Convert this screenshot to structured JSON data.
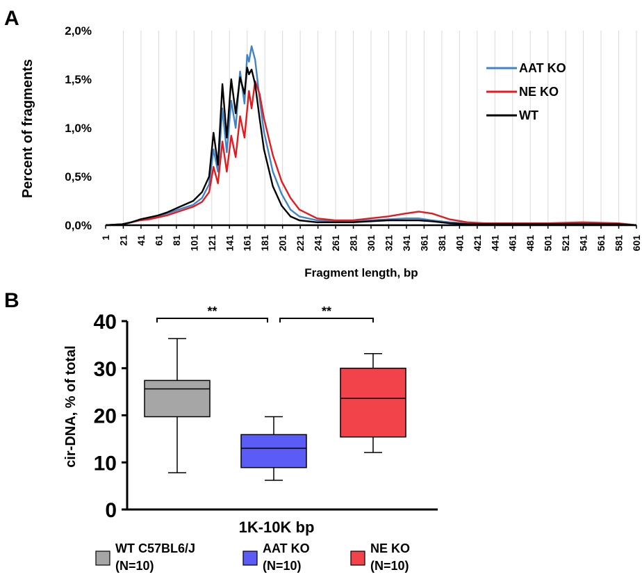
{
  "panels": {
    "a_letter": "A",
    "b_letter": "B"
  },
  "colors": {
    "aat": "#3f84c6",
    "ne": "#e41a1c",
    "wt": "#000000",
    "box_wt": "#a6a6a6",
    "box_aat": "#5a5cf5",
    "box_ne": "#f2434a"
  },
  "chart_data": [
    {
      "type": "line",
      "panel": "A",
      "xlabel": "Fragment length, bp",
      "ylabel": "Percent of fragments",
      "ylim": [
        0,
        2.0
      ],
      "xlim": [
        1,
        601
      ],
      "y_ticks": [
        0,
        0.5,
        1.0,
        1.5,
        2.0
      ],
      "y_tick_labels": [
        "0,0%",
        "0,5%",
        "1,0%",
        "1,5%",
        "2,0%"
      ],
      "x_ticks": [
        1,
        21,
        41,
        61,
        81,
        101,
        121,
        141,
        161,
        181,
        201,
        221,
        241,
        261,
        281,
        301,
        321,
        341,
        361,
        381,
        401,
        421,
        441,
        461,
        481,
        501,
        521,
        541,
        561,
        581,
        601
      ],
      "x_tick_labels": [
        "1",
        "21",
        "41",
        "61",
        "81",
        "101",
        "121",
        "141",
        "161",
        "181",
        "201",
        "221",
        "241",
        "261",
        "281",
        "301",
        "321",
        "341",
        "361",
        "381",
        "401",
        "421",
        "441",
        "461",
        "481",
        "501",
        "521",
        "541",
        "561",
        "581",
        "601"
      ],
      "grid": "vertical",
      "legend_position": "top-right",
      "series": [
        {
          "name": "AAT KO",
          "color": "#3f84c6",
          "x": [
            1,
            20,
            30,
            40,
            50,
            60,
            70,
            80,
            90,
            100,
            110,
            118,
            123,
            128,
            133,
            138,
            143,
            148,
            153,
            158,
            161,
            163,
            166,
            170,
            175,
            180,
            190,
            200,
            210,
            220,
            240,
            260,
            280,
            300,
            320,
            340,
            355,
            370,
            390,
            410,
            430,
            460,
            500,
            540,
            580,
            601
          ],
          "y": [
            0.0,
            0.01,
            0.03,
            0.05,
            0.07,
            0.09,
            0.12,
            0.15,
            0.18,
            0.21,
            0.28,
            0.42,
            0.78,
            0.55,
            1.2,
            0.75,
            1.28,
            1.0,
            1.58,
            1.25,
            1.75,
            1.68,
            1.84,
            1.7,
            1.3,
            0.96,
            0.55,
            0.32,
            0.16,
            0.09,
            0.05,
            0.04,
            0.04,
            0.05,
            0.06,
            0.07,
            0.07,
            0.05,
            0.03,
            0.02,
            0.02,
            0.01,
            0.01,
            0.02,
            0.02,
            0.0
          ]
        },
        {
          "name": "NE KO",
          "color": "#e41a1c",
          "x": [
            1,
            20,
            30,
            40,
            50,
            60,
            70,
            80,
            90,
            100,
            110,
            118,
            123,
            128,
            133,
            138,
            143,
            148,
            153,
            158,
            163,
            166,
            170,
            175,
            180,
            190,
            200,
            210,
            220,
            240,
            260,
            280,
            300,
            320,
            340,
            355,
            370,
            390,
            410,
            430,
            460,
            500,
            540,
            580,
            601
          ],
          "y": [
            0.0,
            0.01,
            0.03,
            0.05,
            0.06,
            0.08,
            0.1,
            0.13,
            0.16,
            0.19,
            0.24,
            0.34,
            0.6,
            0.43,
            0.86,
            0.55,
            0.92,
            0.7,
            1.12,
            0.9,
            1.38,
            1.2,
            1.48,
            1.35,
            1.1,
            0.72,
            0.45,
            0.28,
            0.16,
            0.07,
            0.05,
            0.05,
            0.07,
            0.09,
            0.12,
            0.14,
            0.12,
            0.06,
            0.03,
            0.02,
            0.02,
            0.02,
            0.03,
            0.02,
            0.0
          ]
        },
        {
          "name": "WT",
          "color": "#000000",
          "x": [
            1,
            20,
            30,
            40,
            50,
            60,
            70,
            80,
            90,
            100,
            110,
            118,
            123,
            128,
            133,
            138,
            143,
            148,
            153,
            158,
            161,
            163,
            166,
            170,
            175,
            180,
            190,
            200,
            210,
            220,
            240,
            260,
            280,
            300,
            320,
            340,
            355,
            370,
            390,
            410,
            430,
            460,
            500,
            540,
            580,
            601
          ],
          "y": [
            0.0,
            0.01,
            0.03,
            0.06,
            0.08,
            0.1,
            0.13,
            0.17,
            0.21,
            0.25,
            0.34,
            0.5,
            0.95,
            0.62,
            1.45,
            0.9,
            1.5,
            1.15,
            1.52,
            1.35,
            1.62,
            1.55,
            1.6,
            1.45,
            1.1,
            0.78,
            0.4,
            0.2,
            0.09,
            0.05,
            0.03,
            0.03,
            0.03,
            0.04,
            0.05,
            0.05,
            0.05,
            0.04,
            0.02,
            0.01,
            0.01,
            0.01,
            0.01,
            0.01,
            0.01,
            0.0
          ]
        }
      ]
    },
    {
      "type": "box",
      "panel": "B",
      "xlabel": "1K-10K bp",
      "ylabel": "cir-DNA, % of total",
      "ylim": [
        0,
        40
      ],
      "y_ticks": [
        0,
        10,
        20,
        30,
        40
      ],
      "y_tick_labels": [
        "0",
        "10",
        "20",
        "30",
        "40"
      ],
      "boxes": [
        {
          "name": "WT C57BL6/J",
          "n_label": "(N=10)",
          "min": 7.8,
          "q1": 19.7,
          "median": 25.6,
          "q3": 27.4,
          "max": 36.3,
          "color": "#a6a6a6"
        },
        {
          "name": "AAT KO",
          "n_label": "(N=10)",
          "min": 6.2,
          "q1": 8.9,
          "median": 13.0,
          "q3": 15.9,
          "max": 19.7,
          "color": "#5a5cf5"
        },
        {
          "name": "NE KO",
          "n_label": "(N=10)",
          "min": 12.1,
          "q1": 15.4,
          "median": 23.6,
          "q3": 30.0,
          "max": 33.1,
          "color": "#f2434a"
        }
      ],
      "significance": [
        {
          "from": 0,
          "to": 1,
          "label": "**"
        },
        {
          "from": 1,
          "to": 2,
          "label": "**"
        }
      ],
      "legend_position": "bottom"
    }
  ]
}
